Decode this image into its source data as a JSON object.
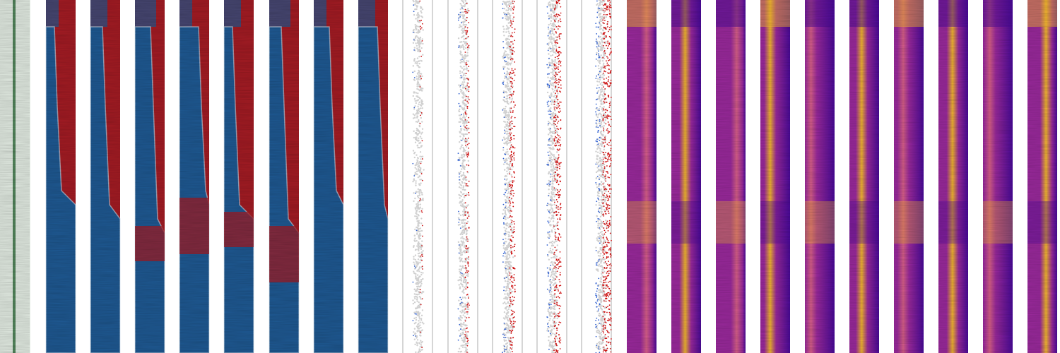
{
  "palette": {
    "green": "#2e6b3a",
    "green_bg": "#e4ede4",
    "red": "#a51c24",
    "blue": "#1f5a94",
    "gray": "#d0d0d0",
    "scatter_red": "#cc1010",
    "scatter_blue": "#3060d0",
    "plasma": [
      "#4a0a9a",
      "#9c2a9e",
      "#d9608a",
      "#f5b830"
    ]
  }
}
